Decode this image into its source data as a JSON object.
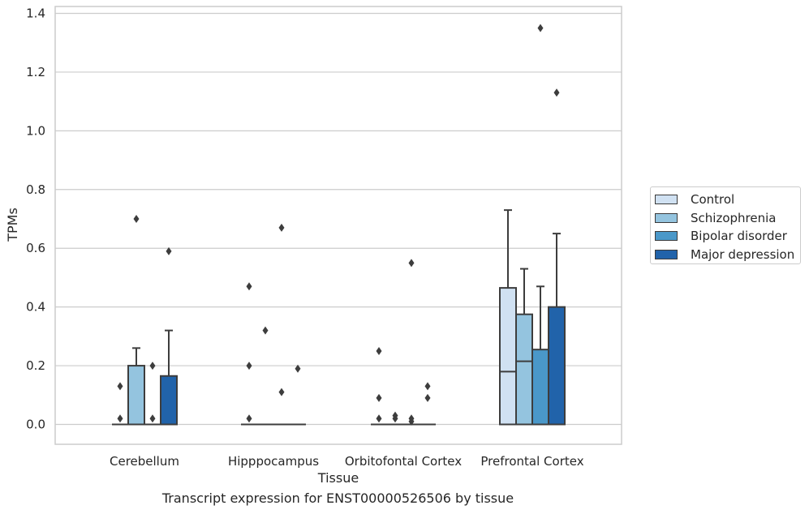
{
  "chart_data": {
    "type": "box",
    "xlabel": "Tissue",
    "ylabel": "TPMs",
    "ylim": [
      -0.065,
      1.42
    ],
    "yticks": [
      0.0,
      0.2,
      0.4,
      0.6,
      0.8,
      1.0,
      1.2,
      1.4
    ],
    "ytick_labels": [
      "0.0",
      "0.2",
      "0.4",
      "0.6",
      "0.8",
      "1.0",
      "1.2",
      "1.4"
    ],
    "categories": [
      "Cerebellum",
      "Hipppocampus",
      "Orbitofontal Cortex",
      "Prefrontal Cortex"
    ],
    "grid": true,
    "legend_position": "right",
    "series": [
      {
        "name": "Control",
        "color": "#d0e1f2",
        "boxes": [
          {
            "min": 0.0,
            "q1": 0.0,
            "median": 0.0,
            "q3": 0.0,
            "max": 0.0,
            "outliers": [
              0.13,
              0.02
            ]
          },
          {
            "min": 0.0,
            "q1": 0.0,
            "median": 0.0,
            "q3": 0.0,
            "max": 0.0,
            "outliers": [
              0.47,
              0.2,
              0.02
            ]
          },
          {
            "min": 0.0,
            "q1": 0.0,
            "median": 0.0,
            "q3": 0.0,
            "max": 0.0,
            "outliers": [
              0.25,
              0.09,
              0.02
            ]
          },
          {
            "min": 0.0,
            "q1": 0.0,
            "median": 0.18,
            "q3": 0.465,
            "max": 0.73,
            "outliers": []
          }
        ]
      },
      {
        "name": "Schizophrenia",
        "color": "#94c4df",
        "boxes": [
          {
            "min": 0.0,
            "q1": 0.0,
            "median": 0.0,
            "q3": 0.2,
            "max": 0.26,
            "outliers": [
              0.7
            ]
          },
          {
            "min": 0.0,
            "q1": 0.0,
            "median": 0.0,
            "q3": 0.0,
            "max": 0.0,
            "outliers": [
              0.32
            ]
          },
          {
            "min": 0.0,
            "q1": 0.0,
            "median": 0.0,
            "q3": 0.0,
            "max": 0.0,
            "outliers": [
              0.03,
              0.02
            ]
          },
          {
            "min": 0.0,
            "q1": 0.0,
            "median": 0.215,
            "q3": 0.375,
            "max": 0.53,
            "outliers": []
          }
        ]
      },
      {
        "name": "Bipolar disorder",
        "color": "#4a98c9",
        "boxes": [
          {
            "min": 0.0,
            "q1": 0.0,
            "median": 0.0,
            "q3": 0.0,
            "max": 0.0,
            "outliers": [
              0.2,
              0.02
            ]
          },
          {
            "min": 0.0,
            "q1": 0.0,
            "median": 0.0,
            "q3": 0.0,
            "max": 0.0,
            "outliers": [
              0.67,
              0.11
            ]
          },
          {
            "min": 0.0,
            "q1": 0.0,
            "median": 0.0,
            "q3": 0.0,
            "max": 0.0,
            "outliers": [
              0.55,
              0.02,
              0.01
            ]
          },
          {
            "min": 0.0,
            "q1": 0.0,
            "median": 0.0,
            "q3": 0.255,
            "max": 0.47,
            "outliers": [
              1.35
            ]
          }
        ]
      },
      {
        "name": "Major depression",
        "color": "#2163aa",
        "boxes": [
          {
            "min": 0.0,
            "q1": 0.0,
            "median": 0.0,
            "q3": 0.165,
            "max": 0.32,
            "outliers": [
              0.59
            ]
          },
          {
            "min": 0.0,
            "q1": 0.0,
            "median": 0.0,
            "q3": 0.0,
            "max": 0.0,
            "outliers": [
              0.19
            ]
          },
          {
            "min": 0.0,
            "q1": 0.0,
            "median": 0.0,
            "q3": 0.0,
            "max": 0.0,
            "outliers": [
              0.13,
              0.09
            ]
          },
          {
            "min": 0.0,
            "q1": 0.0,
            "median": 0.0,
            "q3": 0.4,
            "max": 0.65,
            "outliers": [
              1.13
            ]
          }
        ]
      }
    ]
  },
  "caption": "Transcript expression for ENST00000526506 by tissue"
}
